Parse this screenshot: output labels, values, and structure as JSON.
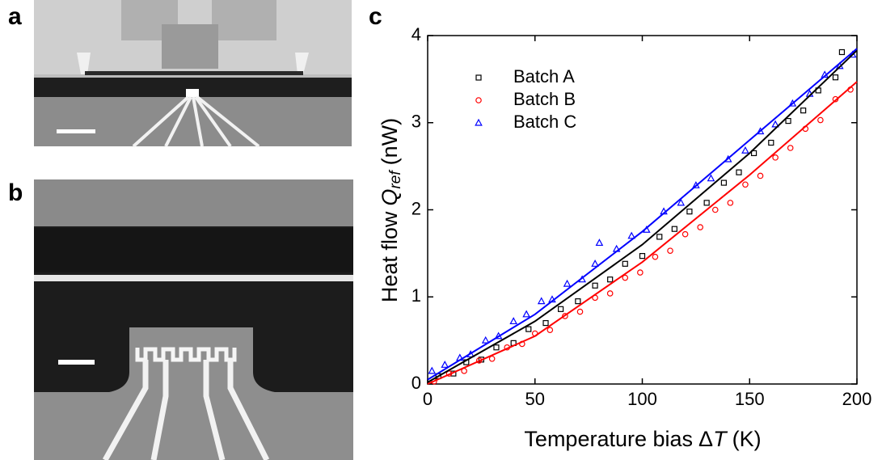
{
  "panels": [
    {
      "label": "a"
    },
    {
      "label": "b"
    },
    {
      "label": "c"
    }
  ],
  "chart_data": {
    "type": "scatter",
    "x_label": [
      "Temperature bias",
      "Δ",
      "T",
      "(K)"
    ],
    "y_label": [
      "Heat flow",
      "Q",
      "ref",
      "(nW)"
    ],
    "xlim": [
      0,
      200
    ],
    "xticks": [
      0,
      50,
      100,
      150,
      200
    ],
    "ylim": [
      0,
      4
    ],
    "yticks": [
      0,
      1,
      2,
      3,
      4
    ],
    "legend": "upper-left",
    "series": [
      {
        "name": "Batch A",
        "color": "#000000",
        "marker": "square",
        "x": [
          5,
          12,
          18,
          25,
          32,
          40,
          47,
          55,
          62,
          70,
          78,
          85,
          92,
          100,
          108,
          115,
          122,
          130,
          138,
          145,
          152,
          160,
          168,
          175,
          182,
          190,
          193
        ],
        "values": [
          0.09,
          0.12,
          0.25,
          0.28,
          0.42,
          0.47,
          0.63,
          0.7,
          0.86,
          0.95,
          1.13,
          1.2,
          1.38,
          1.47,
          1.69,
          1.78,
          1.98,
          2.08,
          2.31,
          2.43,
          2.65,
          2.77,
          3.02,
          3.14,
          3.37,
          3.52,
          3.81
        ],
        "fit": {
          "x": [
            0,
            50,
            100,
            150,
            200
          ],
          "y": [
            0.02,
            0.72,
            1.6,
            2.65,
            3.83
          ]
        }
      },
      {
        "name": "Batch B",
        "color": "#ff0000",
        "marker": "circle",
        "x": [
          3,
          10,
          17,
          24,
          30,
          37,
          44,
          50,
          57,
          64,
          71,
          78,
          85,
          92,
          99,
          106,
          113,
          120,
          127,
          134,
          141,
          148,
          155,
          162,
          169,
          176,
          183,
          190,
          197
        ],
        "values": [
          0.03,
          0.12,
          0.15,
          0.27,
          0.29,
          0.42,
          0.46,
          0.58,
          0.62,
          0.78,
          0.83,
          0.99,
          1.04,
          1.22,
          1.28,
          1.46,
          1.53,
          1.72,
          1.8,
          2.0,
          2.08,
          2.29,
          2.39,
          2.6,
          2.71,
          2.93,
          3.03,
          3.27,
          3.38
        ],
        "fit": {
          "x": [
            0,
            50,
            100,
            150,
            200
          ],
          "y": [
            0,
            0.55,
            1.4,
            2.4,
            3.47
          ]
        }
      },
      {
        "name": "Batch C",
        "color": "#0000ff",
        "marker": "triangle",
        "x": [
          2,
          8,
          15,
          20,
          27,
          33,
          40,
          46,
          53,
          58,
          65,
          72,
          78,
          80,
          88,
          95,
          102,
          110,
          118,
          125,
          132,
          140,
          148,
          155,
          162,
          170,
          178,
          185,
          192,
          198
        ],
        "values": [
          0.15,
          0.22,
          0.3,
          0.34,
          0.5,
          0.55,
          0.72,
          0.8,
          0.95,
          0.97,
          1.15,
          1.2,
          1.38,
          1.62,
          1.55,
          1.7,
          1.77,
          1.98,
          2.08,
          2.28,
          2.36,
          2.58,
          2.68,
          2.9,
          2.98,
          3.22,
          3.33,
          3.55,
          3.65,
          3.78
        ],
        "fit": {
          "x": [
            0,
            50,
            100,
            150,
            200
          ],
          "y": [
            0.05,
            0.8,
            1.75,
            2.8,
            3.85
          ]
        }
      }
    ]
  }
}
